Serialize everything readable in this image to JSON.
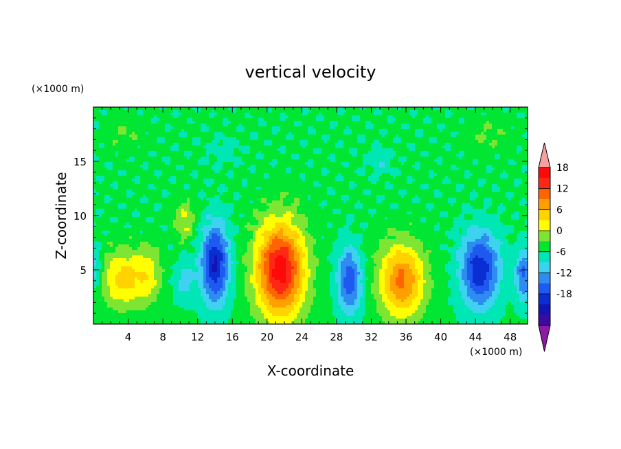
{
  "chart_data": {
    "type": "heatmap",
    "title": "vertical velocity",
    "xlabel": "X-coordinate",
    "ylabel": "Z-coordinate",
    "x_unit": "(×1000 m)",
    "y_unit": "(×1000 m)",
    "xlim": [
      0,
      50
    ],
    "ylim": [
      0,
      20
    ],
    "x_ticks": [
      4,
      8,
      12,
      16,
      20,
      24,
      28,
      32,
      36,
      40,
      44,
      48
    ],
    "y_ticks": [
      5,
      10,
      15
    ],
    "grid": false,
    "colorbar": {
      "placement": "right",
      "levels": [
        -21,
        -18,
        -15,
        -12,
        -9,
        -6,
        -3,
        0,
        3,
        6,
        9,
        12,
        15,
        18,
        21
      ],
      "tick_labels": [
        "18",
        "12",
        "6",
        "0",
        "-6",
        "-12",
        "-18"
      ],
      "tick_values": [
        18,
        12,
        6,
        0,
        -6,
        -12,
        -18
      ],
      "colors": [
        "#8c1aa6",
        "#3c0aa0",
        "#1414b4",
        "#0a2ed2",
        "#1e5af0",
        "#2e8cf0",
        "#3cd2f0",
        "#00e6b4",
        "#00e632",
        "#7ee632",
        "#ffff00",
        "#ffd200",
        "#ffa000",
        "#ff6400",
        "#ff2814",
        "#ff0a0a",
        "#f5a0a0"
      ]
    },
    "features": [
      {
        "x": 3.5,
        "z": 4.2,
        "sx": 2.6,
        "sz": 2.6,
        "w": 10
      },
      {
        "x": 6.5,
        "z": 4.5,
        "sx": 1.4,
        "sz": 2.5,
        "w": 5
      },
      {
        "x": 10.5,
        "z": 9.5,
        "sx": 1.2,
        "sz": 1.8,
        "w": 6
      },
      {
        "x": 14.0,
        "z": 5.5,
        "sx": 1.6,
        "sz": 3.6,
        "w": -16
      },
      {
        "x": 10.5,
        "z": 4.0,
        "sx": 1.2,
        "sz": 1.8,
        "w": -5
      },
      {
        "x": 21.5,
        "z": 5.0,
        "sx": 2.8,
        "sz": 4.4,
        "w": 22
      },
      {
        "x": 29.5,
        "z": 4.0,
        "sx": 1.4,
        "sz": 3.0,
        "w": -12
      },
      {
        "x": 35.5,
        "z": 4.0,
        "sx": 2.6,
        "sz": 3.4,
        "w": 15
      },
      {
        "x": 44.5,
        "z": 5.0,
        "sx": 2.2,
        "sz": 3.4,
        "w": -15
      },
      {
        "x": 49.5,
        "z": 4.5,
        "sx": 0.9,
        "sz": 2.4,
        "w": -10
      },
      {
        "x": 0.2,
        "z": 5.0,
        "sx": 0.8,
        "sz": 1.8,
        "w": -6
      },
      {
        "x": 3.5,
        "z": 17.5,
        "sx": 2.0,
        "sz": 1.5,
        "w": 2.5
      },
      {
        "x": 45.5,
        "z": 17.5,
        "sx": 2.5,
        "sz": 1.5,
        "w": 2.5
      },
      {
        "x": 15.0,
        "z": 16.0,
        "sx": 2.0,
        "sz": 1.2,
        "w": -2
      },
      {
        "x": 33.0,
        "z": 15.0,
        "sx": 1.5,
        "sz": 1.2,
        "w": -3
      }
    ]
  }
}
